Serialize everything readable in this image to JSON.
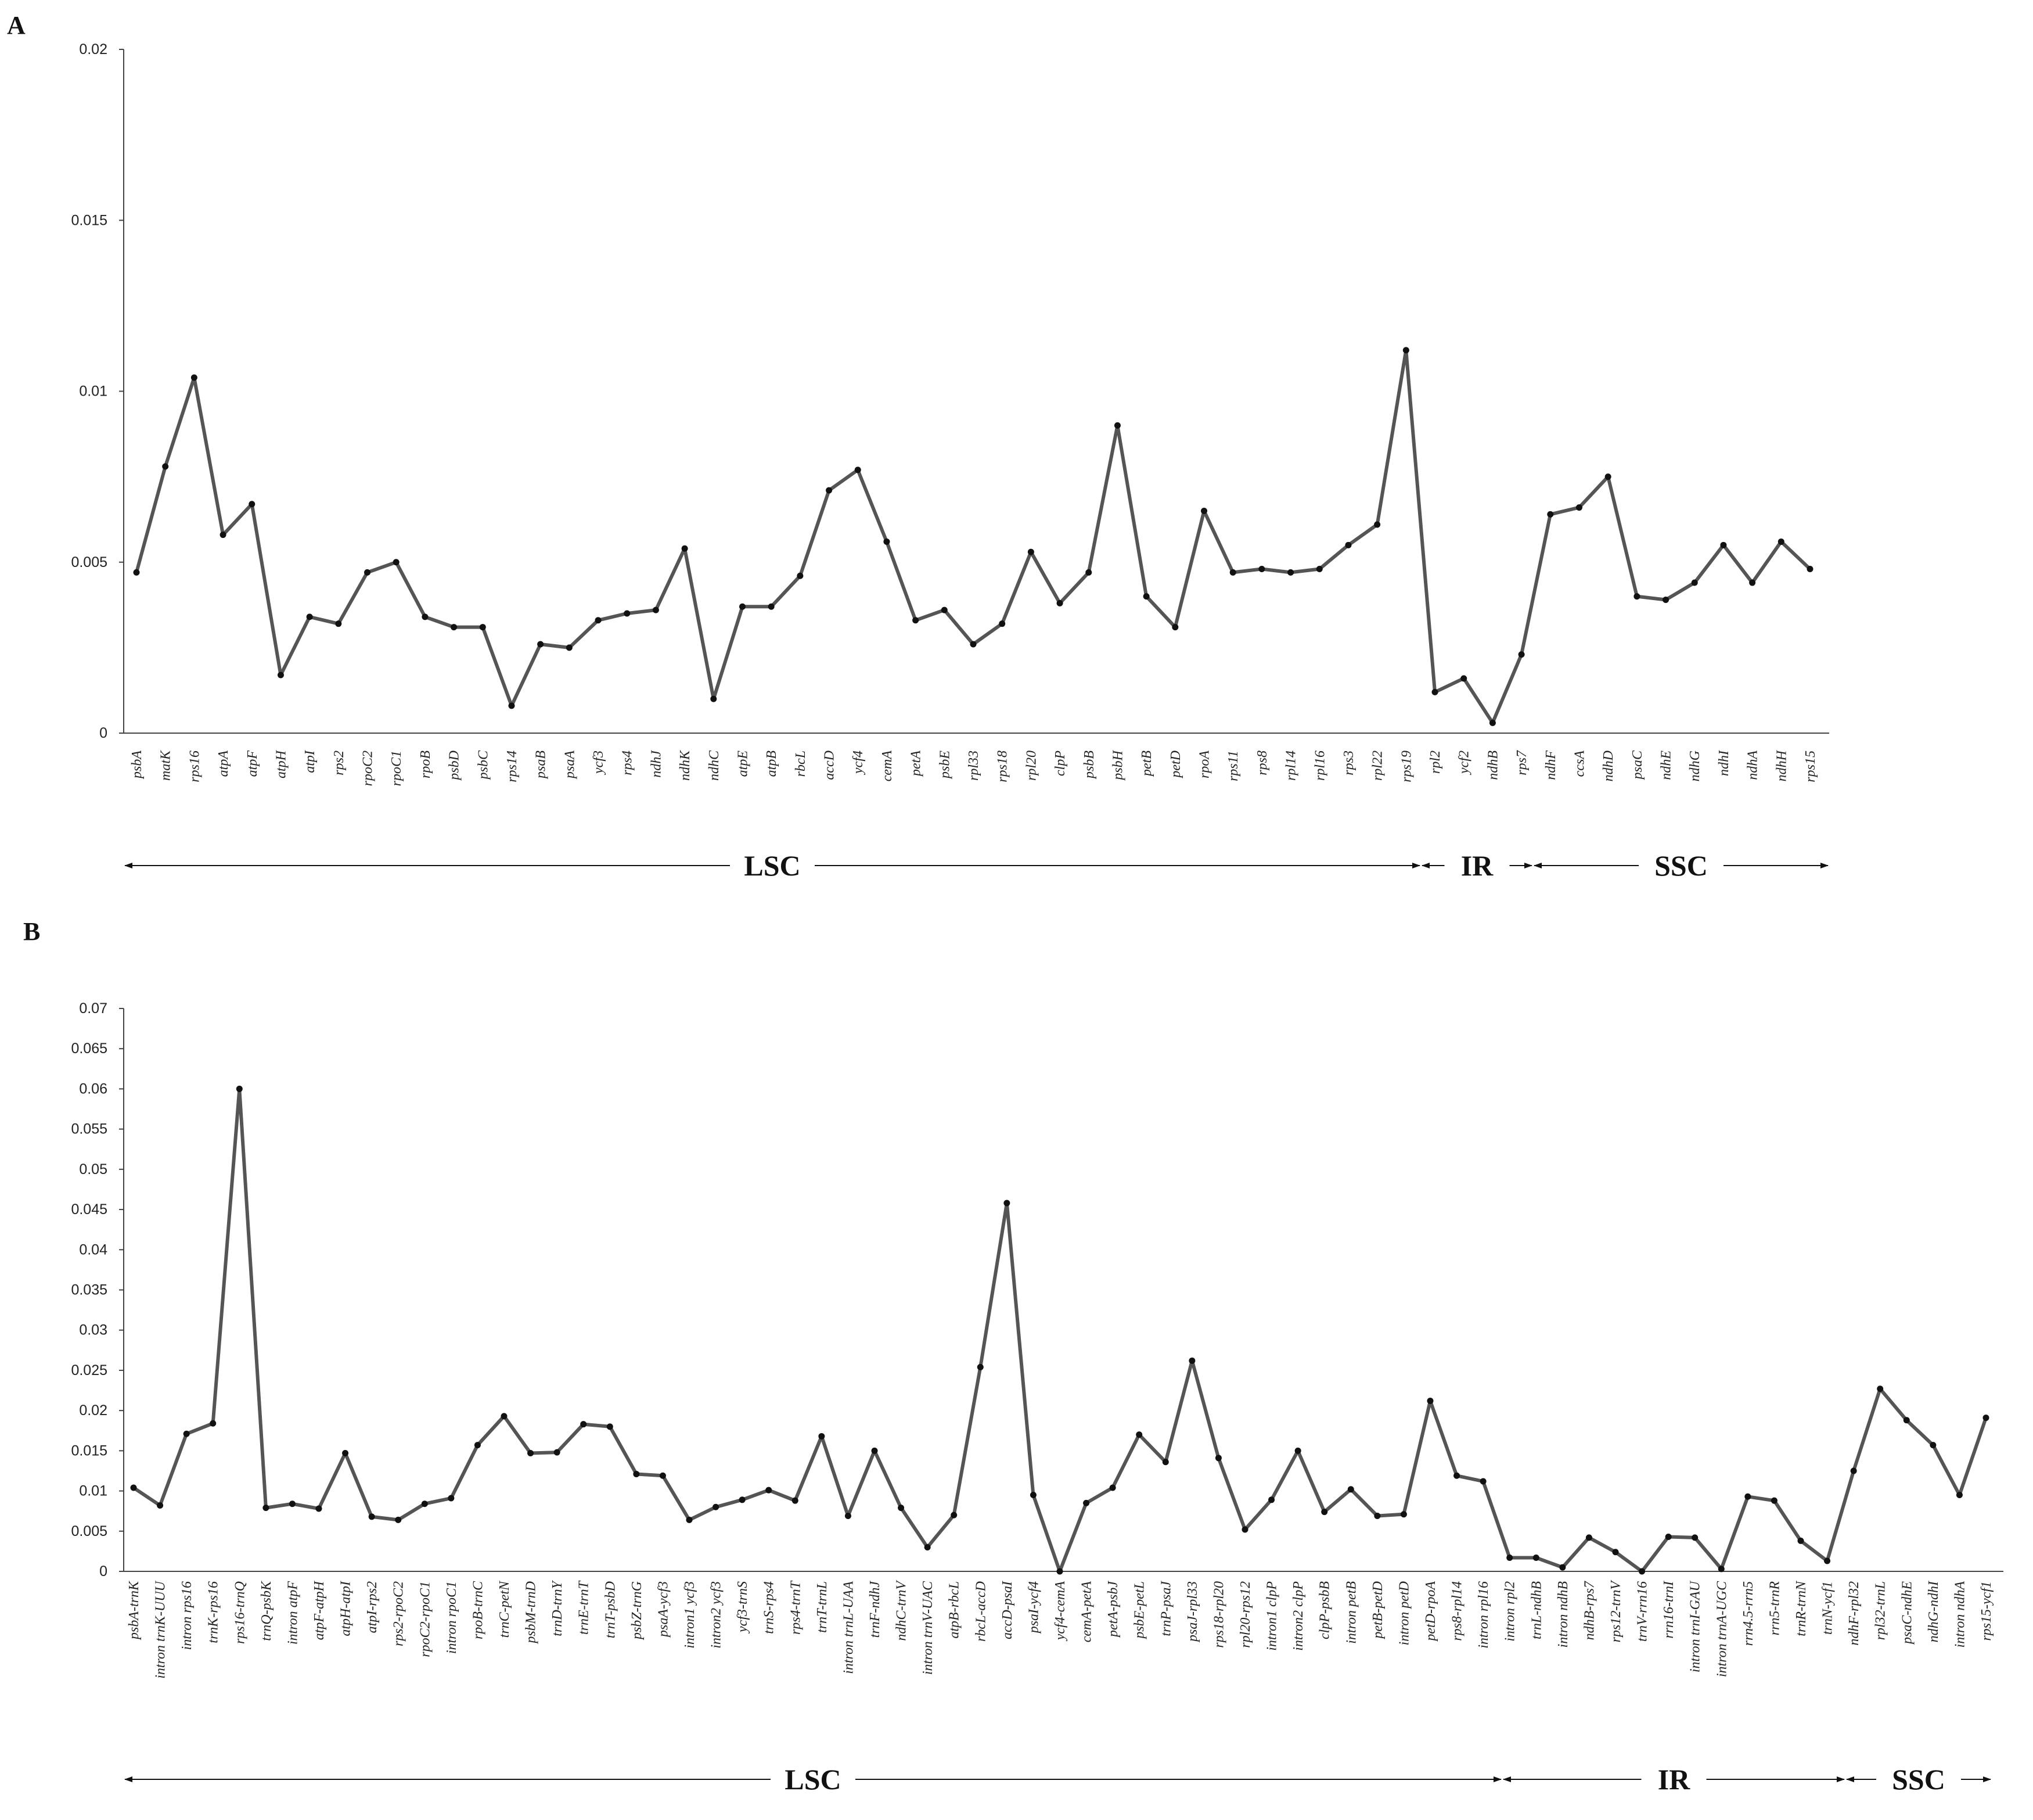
{
  "chart_data": [
    {
      "panel": "A",
      "type": "line",
      "ylim": [
        0,
        0.02
      ],
      "yticks": [
        "0",
        "0.005",
        "0.01",
        "0.015",
        "0.02"
      ],
      "categories": [
        "psbA",
        "matK",
        "rps16",
        "atpA",
        "atpF",
        "atpH",
        "atpI",
        "rps2",
        "rpoC2",
        "rpoC1",
        "rpoB",
        "psbD",
        "psbC",
        "rps14",
        "psaB",
        "psaA",
        "ycf3",
        "rps4",
        "ndhJ",
        "ndhK",
        "ndhC",
        "atpE",
        "atpB",
        "rbcL",
        "accD",
        "ycf4",
        "cemA",
        "petA",
        "psbE",
        "rpl33",
        "rps18",
        "rpl20",
        "clpP",
        "psbB",
        "psbH",
        "petB",
        "petD",
        "rpoA",
        "rps11",
        "rps8",
        "rpl14",
        "rpl16",
        "rps3",
        "rpl22",
        "rps19",
        "rpl2",
        "ycf2",
        "ndhB",
        "rps7",
        "ndhF",
        "ccsA",
        "ndhD",
        "psaC",
        "ndhE",
        "ndhG",
        "ndhI",
        "ndhA",
        "ndhH",
        "rps15"
      ],
      "values": [
        0.0047,
        0.0078,
        0.0104,
        0.0058,
        0.0067,
        0.0017,
        0.0034,
        0.0032,
        0.0047,
        0.005,
        0.0034,
        0.0031,
        0.0031,
        0.0008,
        0.0026,
        0.0025,
        0.0033,
        0.0035,
        0.0036,
        0.0054,
        0.001,
        0.0037,
        0.0037,
        0.0046,
        0.0071,
        0.0077,
        0.0056,
        0.0033,
        0.0036,
        0.0026,
        0.0032,
        0.0053,
        0.0038,
        0.0047,
        0.009,
        0.004,
        0.0031,
        0.0065,
        0.0047,
        0.0048,
        0.0047,
        0.0048,
        0.0055,
        0.0061,
        0.0112,
        0.0012,
        0.0016,
        0.0003,
        0.0023,
        0.0064,
        0.0066,
        0.0075,
        0.004,
        0.0039,
        0.0044,
        0.0055,
        0.0044,
        0.0056,
        0.0048
      ],
      "regions": [
        {
          "label": "LSC",
          "from": 0,
          "to": 44
        },
        {
          "label": "IR",
          "from": 44,
          "to": 48
        },
        {
          "label": "SSC",
          "from": 48,
          "to": 58
        }
      ]
    },
    {
      "panel": "B",
      "type": "line",
      "ylim": [
        0,
        0.07
      ],
      "yticks": [
        "0",
        "0.005",
        "0.01",
        "0.015",
        "0.02",
        "0.025",
        "0.03",
        "0.035",
        "0.04",
        "0.045",
        "0.05",
        "0.055",
        "0.06",
        "0.065",
        "0.07"
      ],
      "categories": [
        "psbA-trnK",
        "intron trnK-UUU",
        "intron rps16",
        "trnK-rps16",
        "rps16-trnQ",
        "trnQ-psbK",
        "intron atpF",
        "atpF-atpH",
        "atpH-atpI",
        "atpI-rps2",
        "rps2-rpoC2",
        "rpoC2-rpoC1",
        "intron rpoC1",
        "rpoB-trnC",
        "trnC-petN",
        "psbM-trnD",
        "trnD-trnY",
        "trnE-trnT",
        "trnT-psbD",
        "psbZ-trnG",
        "psaA-ycf3",
        "intron1 ycf3",
        "intron2 ycf3",
        "ycf3-trnS",
        "trnS-rps4",
        "rps4-trnT",
        "trnT-trnL",
        "intron trnL-UAA",
        "trnF-ndhJ",
        "ndhC-trnV",
        "intron trnV-UAC",
        "atpB-rbcL",
        "rbcL-accD",
        "accD-psaI",
        "psaI-ycf4",
        "ycf4-cemA",
        "cemA-petA",
        "petA-psbJ",
        "psbE-petL",
        "trnP-psaJ",
        "psaJ-rpl33",
        "rps18-rpl20",
        "rpl20-rps12",
        "intron1 clpP",
        "intron2 clpP",
        "clpP-psbB",
        "intron petB",
        "petB-petD",
        "intron petD",
        "petD-rpoA",
        "rps8-rpl14",
        "intron rpl16",
        "intron rpl2",
        "trnL-ndhB",
        "intron ndhB",
        "ndhB-rps7",
        "rps12-trnV",
        "trnV-rrn16",
        "rrn16-trnI",
        "intron trnI-GAU",
        "intron trnA-UGC",
        "rrn4.5-rrn5",
        "rrn5-trnR",
        "trnR-trnN",
        "trnN-ycf1",
        "ndhF-rpl32",
        "rpl32-trnL",
        "psaC-ndhE",
        "ndhG-ndhI",
        "intron ndhA",
        "rps15-ycf1"
      ],
      "values": [
        0.0104,
        0.0082,
        0.0171,
        0.0184,
        0.06,
        0.0079,
        0.0084,
        0.0078,
        0.0147,
        0.0068,
        0.0064,
        0.0084,
        0.0091,
        0.0157,
        0.0193,
        0.0147,
        0.0148,
        0.0183,
        0.018,
        0.0121,
        0.0119,
        0.0064,
        0.008,
        0.0089,
        0.0101,
        0.0088,
        0.0168,
        0.0069,
        0.015,
        0.0079,
        0.003,
        0.007,
        0.0254,
        0.0458,
        0.0095,
        0.0,
        0.0085,
        0.0104,
        0.017,
        0.0136,
        0.0262,
        0.0141,
        0.0052,
        0.0089,
        0.015,
        0.0074,
        0.0102,
        0.0069,
        0.0071,
        0.0212,
        0.0119,
        0.0112,
        0.0017,
        0.0017,
        0.0005,
        0.0042,
        0.0024,
        0.0,
        0.0043,
        0.0042,
        0.0003,
        0.0093,
        0.0088,
        0.0038,
        0.0013,
        0.0125,
        0.0227,
        0.0188,
        0.0157,
        0.0095,
        0.0191
      ],
      "regions": [
        {
          "label": "LSC",
          "from": 0,
          "to": 51
        },
        {
          "label": "IR",
          "from": 51,
          "to": 64
        },
        {
          "label": "SSC",
          "from": 64,
          "to": 70
        }
      ]
    }
  ]
}
